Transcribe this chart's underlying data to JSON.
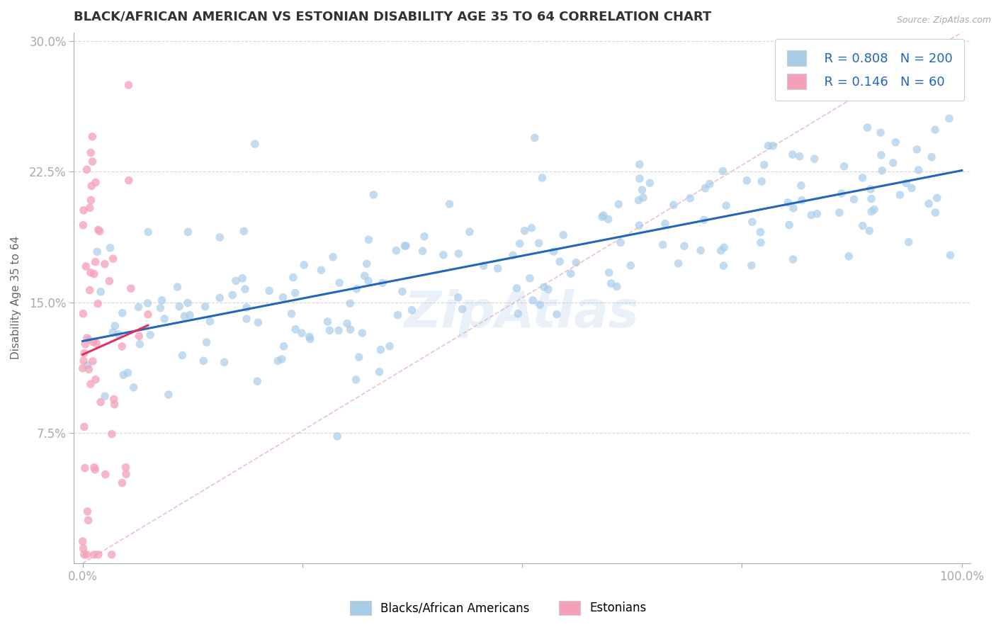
{
  "title": "BLACK/AFRICAN AMERICAN VS ESTONIAN DISABILITY AGE 35 TO 64 CORRELATION CHART",
  "source": "Source: ZipAtlas.com",
  "xlabel": "",
  "ylabel": "Disability Age 35 to 64",
  "xmin": 0.0,
  "xmax": 1.0,
  "ymin": 0.0,
  "ymax": 0.305,
  "xticks": [
    0.0,
    0.25,
    0.5,
    0.75,
    1.0
  ],
  "xticklabels": [
    "0.0%",
    "",
    "",
    "",
    "100.0%"
  ],
  "yticks": [
    0.075,
    0.15,
    0.225,
    0.3
  ],
  "yticklabels": [
    "7.5%",
    "15.0%",
    "22.5%",
    "30.0%"
  ],
  "legend_labels": [
    "Blacks/African Americans",
    "Estonians"
  ],
  "blue_color": "#a8cce8",
  "pink_color": "#f4a0b8",
  "blue_line_color": "#2266bb",
  "pink_line_color": "#e03060",
  "diag_line_color": "#e8b0c0",
  "r_blue": 0.808,
  "n_blue": 200,
  "r_pink": 0.146,
  "n_pink": 60,
  "watermark": "ZipAtlas",
  "background_color": "#ffffff",
  "grid_color": "#cccccc",
  "title_color": "#333333",
  "axis_label_color": "#666666",
  "tick_label_color": "#4488cc",
  "legend_r_color": "#2266bb"
}
